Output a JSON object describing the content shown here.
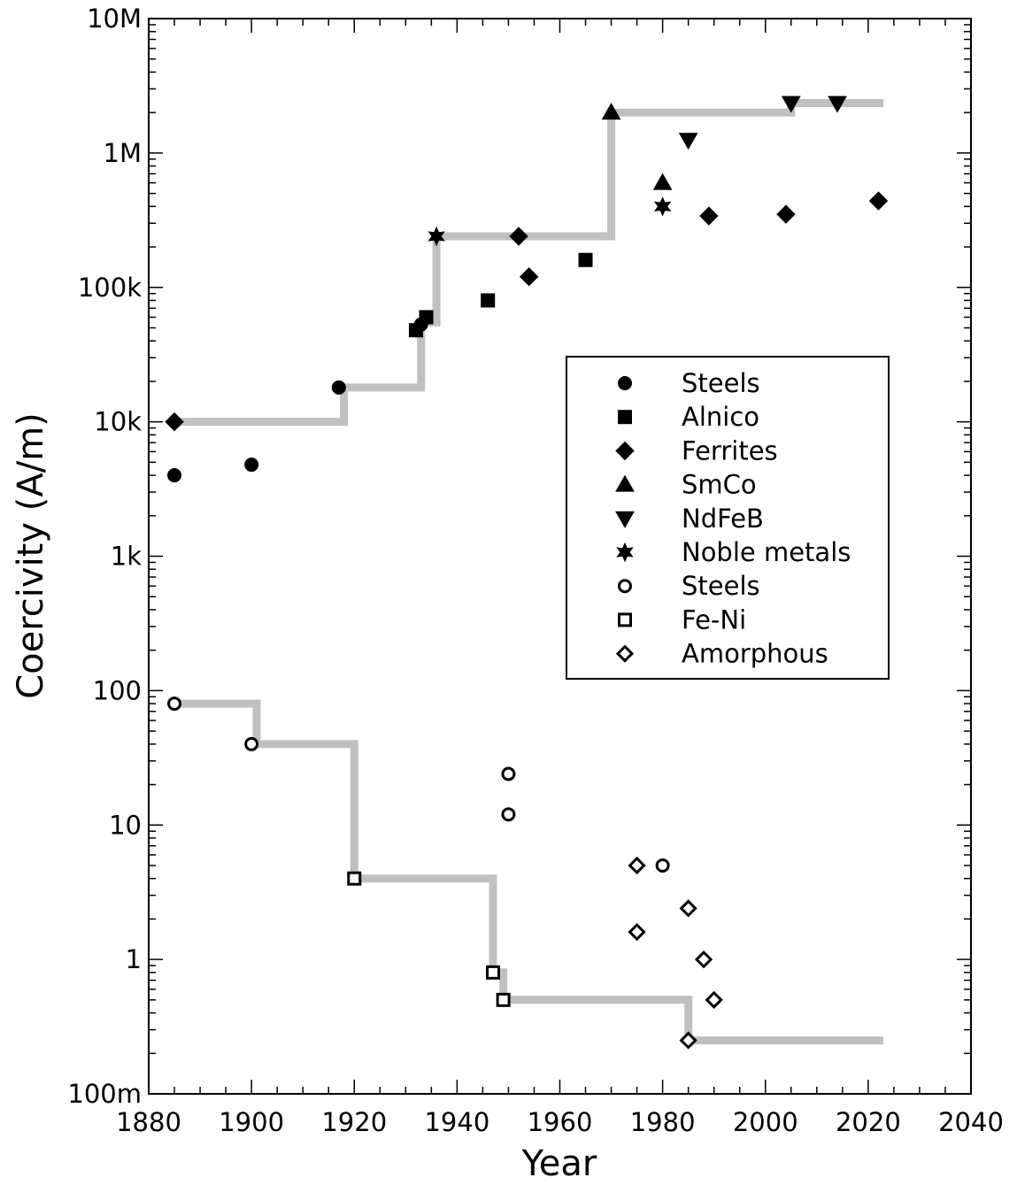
{
  "chart_data": {
    "type": "scatter",
    "title": "",
    "xlabel": "Year",
    "ylabel": "Coercivity (A/m)",
    "xlim": [
      1880,
      2040
    ],
    "ylim": [
      0.1,
      10000000
    ],
    "yscale": "log",
    "x_ticks": [
      1880,
      1900,
      1920,
      1940,
      1960,
      1980,
      2000,
      2020,
      2040
    ],
    "y_ticks": [
      {
        "value": 0.1,
        "label": "100m"
      },
      {
        "value": 1,
        "label": "1"
      },
      {
        "value": 10,
        "label": "10"
      },
      {
        "value": 100,
        "label": "100"
      },
      {
        "value": 1000,
        "label": "1k"
      },
      {
        "value": 10000,
        "label": "10k"
      },
      {
        "value": 100000,
        "label": "100k"
      },
      {
        "value": 1000000,
        "label": "1M"
      },
      {
        "value": 10000000,
        "label": "10M"
      }
    ],
    "grid": false,
    "legend_position": "center-right",
    "series": [
      {
        "name": "Steels",
        "marker": "circle",
        "filled": true,
        "points": [
          [
            1885,
            4000
          ],
          [
            1900,
            4800
          ],
          [
            1917,
            18000
          ],
          [
            1932,
            48000
          ],
          [
            1933,
            53000
          ]
        ]
      },
      {
        "name": "Alnico",
        "marker": "square",
        "filled": true,
        "points": [
          [
            1932,
            48000
          ],
          [
            1934,
            60000
          ],
          [
            1946,
            80000
          ],
          [
            1965,
            160000
          ]
        ]
      },
      {
        "name": "Ferrites",
        "marker": "diamond",
        "filled": true,
        "points": [
          [
            1885,
            10000
          ],
          [
            1952,
            240000
          ],
          [
            1954,
            120000
          ],
          [
            1989,
            340000
          ],
          [
            2004,
            350000
          ],
          [
            2022,
            440000
          ]
        ]
      },
      {
        "name": "SmCo",
        "marker": "triangle-up",
        "filled": true,
        "points": [
          [
            1970,
            2000000
          ],
          [
            1980,
            600000
          ]
        ]
      },
      {
        "name": "NdFeB",
        "marker": "triangle-down",
        "filled": true,
        "points": [
          [
            1985,
            1250000
          ],
          [
            2005,
            2350000
          ],
          [
            2014,
            2350000
          ]
        ]
      },
      {
        "name": "Noble metals",
        "marker": "star",
        "filled": true,
        "points": [
          [
            1936,
            240000
          ],
          [
            1980,
            400000
          ]
        ]
      },
      {
        "name": "Steels",
        "marker": "circle",
        "filled": false,
        "points": [
          [
            1885,
            80
          ],
          [
            1900,
            40
          ],
          [
            1950,
            24
          ],
          [
            1950,
            12
          ],
          [
            1980,
            5
          ]
        ]
      },
      {
        "name": "Fe-Ni",
        "marker": "square",
        "filled": false,
        "points": [
          [
            1920,
            4
          ],
          [
            1947,
            0.8
          ],
          [
            1949,
            0.5
          ]
        ]
      },
      {
        "name": "Amorphous",
        "marker": "diamond",
        "filled": false,
        "points": [
          [
            1975,
            5
          ],
          [
            1975,
            1.6
          ],
          [
            1985,
            2.4
          ],
          [
            1988,
            1
          ],
          [
            1990,
            0.5
          ],
          [
            1985,
            0.25
          ]
        ]
      }
    ],
    "step_lines": [
      {
        "color": "#c0c0c0",
        "points": [
          [
            1885,
            10000
          ],
          [
            1918,
            10000
          ],
          [
            1918,
            18000
          ],
          [
            1933,
            18000
          ],
          [
            1933,
            55000
          ],
          [
            1936,
            55000
          ],
          [
            1936,
            240000
          ],
          [
            1970,
            240000
          ],
          [
            1970,
            2000000
          ],
          [
            2005,
            2000000
          ],
          [
            2005,
            2350000
          ],
          [
            2023,
            2350000
          ]
        ]
      },
      {
        "color": "#c0c0c0",
        "points": [
          [
            1885,
            80
          ],
          [
            1901,
            80
          ],
          [
            1901,
            40
          ],
          [
            1920,
            40
          ],
          [
            1920,
            4
          ],
          [
            1947,
            4
          ],
          [
            1947,
            0.8
          ],
          [
            1949,
            0.8
          ],
          [
            1949,
            0.5
          ],
          [
            1985,
            0.5
          ],
          [
            1985,
            0.25
          ],
          [
            2023,
            0.25
          ]
        ]
      }
    ],
    "colors": {
      "markers": "#000000",
      "step": "#c0c0c0",
      "axes": "#000000"
    }
  }
}
